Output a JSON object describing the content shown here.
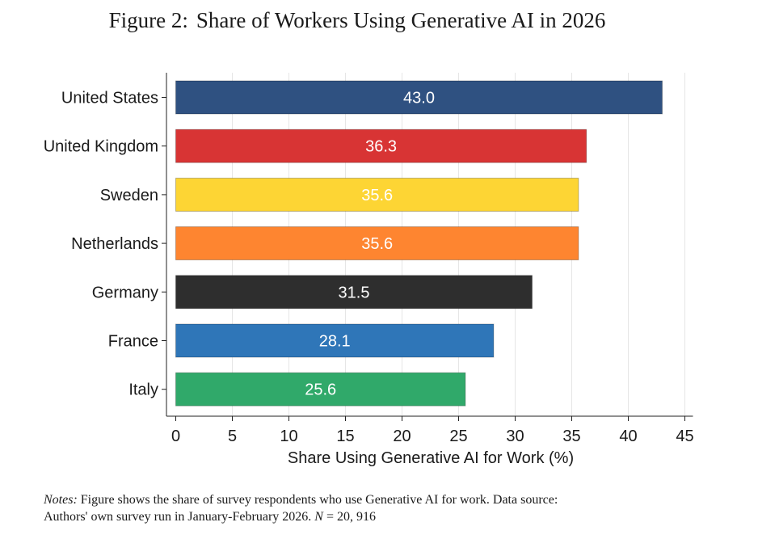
{
  "figure": {
    "label": "Figure 2:",
    "title": "Share of Workers Using Generative AI in 2026"
  },
  "chart_data": {
    "type": "bar",
    "orientation": "horizontal",
    "categories": [
      "United States",
      "United Kingdom",
      "Sweden",
      "Netherlands",
      "Germany",
      "France",
      "Italy"
    ],
    "values": [
      43.0,
      36.3,
      35.6,
      35.6,
      31.5,
      28.1,
      25.6
    ],
    "value_labels": [
      "43.0",
      "36.3",
      "35.6",
      "35.6",
      "31.5",
      "28.1",
      "25.6"
    ],
    "colors": [
      "#2f5181",
      "#d83434",
      "#fdd534",
      "#fe8530",
      "#2e2e2e",
      "#2f76b8",
      "#30a96a"
    ],
    "xlabel": "Share Using Generative AI for Work (%)",
    "ylabel": "",
    "xlim": [
      0,
      45
    ],
    "xticks": [
      0,
      5,
      10,
      15,
      20,
      25,
      30,
      35,
      40,
      45
    ],
    "grid": "vertical",
    "legend": "none"
  },
  "notes": {
    "label": "Notes:",
    "line1": "Figure shows the share of survey respondents who use Generative AI for work.  Data source:",
    "line2_prefix": "Authors' own survey run in January-February 2026.",
    "n_symbol": "N",
    "n_value": "= 20, 916"
  }
}
